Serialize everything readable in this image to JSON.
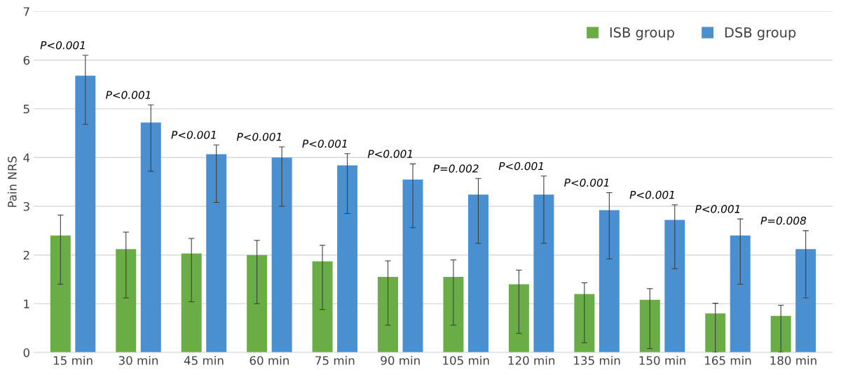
{
  "chart_data": {
    "type": "bar",
    "ylabel": "Pain NRS",
    "categories": [
      "15 min",
      "30 min",
      "45 min",
      "60 min",
      "75 min",
      "90 min",
      "105 min",
      "120 min",
      "135 min",
      "150 min",
      "165 min",
      "180 min"
    ],
    "series": [
      {
        "name": "ISB group",
        "color": "#6aac45",
        "values": [
          2.4,
          2.12,
          2.03,
          2.0,
          1.87,
          1.55,
          1.55,
          1.4,
          1.2,
          1.08,
          0.8,
          0.75
        ],
        "errors": [
          [
            1.4,
            2.82
          ],
          [
            1.12,
            2.47
          ],
          [
            1.04,
            2.34
          ],
          [
            1.0,
            2.3
          ],
          [
            0.88,
            2.2
          ],
          [
            0.56,
            1.88
          ],
          [
            0.56,
            1.9
          ],
          [
            0.39,
            1.69
          ],
          [
            0.2,
            1.43
          ],
          [
            0.08,
            1.31
          ],
          [
            0.0,
            1.01
          ],
          [
            0.0,
            0.97
          ]
        ]
      },
      {
        "name": "DSB group",
        "color": "#4a8fd0",
        "values": [
          5.68,
          4.72,
          4.07,
          4.0,
          3.84,
          3.55,
          3.24,
          3.24,
          2.92,
          2.72,
          2.4,
          2.12
        ],
        "errors": [
          [
            4.68,
            6.1
          ],
          [
            3.72,
            5.08
          ],
          [
            3.08,
            4.26
          ],
          [
            3.0,
            4.22
          ],
          [
            2.85,
            4.08
          ],
          [
            2.56,
            3.87
          ],
          [
            2.24,
            3.57
          ],
          [
            2.24,
            3.62
          ],
          [
            1.92,
            3.28
          ],
          [
            1.72,
            3.03
          ],
          [
            1.4,
            2.74
          ],
          [
            1.12,
            2.5
          ]
        ]
      }
    ],
    "annotations": [
      "P<0.001",
      "P<0.001",
      "P<0.001",
      "P<0.001",
      "P<0.001",
      "P<0.001",
      "P=0.002",
      "P<0.001",
      "P<0.001",
      "P<0.001",
      "P<0.001",
      "P=0.008"
    ],
    "ylim": [
      0,
      7
    ],
    "yticks": [
      0,
      1,
      2,
      3,
      4,
      5,
      6,
      7
    ],
    "grid": "y",
    "legend": "top right"
  }
}
